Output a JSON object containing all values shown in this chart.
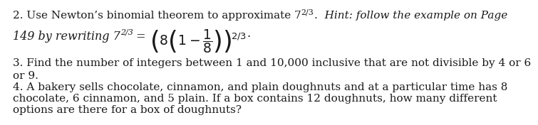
{
  "background_color": "#ffffff",
  "text_color": "#1a1a1a",
  "font_family": "DejaVu Serif",
  "fontsize": 11.0,
  "line1_normal": "2. Use Newton’s binomial theorem to approximate 7",
  "line1_super": "2/3",
  "line1_italic": ".  Hint: follow the example on Page",
  "line2_italic1": "149 by rewriting 7",
  "line2_super1": "2/3",
  "line2_italic2": " = ",
  "line2_math": "$\\left(8\\left(1-\\dfrac{1}{8}\\right)\\right)^{\\!2/3}$",
  "line2_dot": ".",
  "line3": "3. Find the number of integers between 1 and 10,000 inclusive that are not divisible by 4 or 6",
  "line4": "or 9.",
  "line5": "4. A bakery sells chocolate, cinnamon, and plain doughnuts and at a particular time has 8",
  "line6": "chocolate, 6 cinnamon, and 5 plain. If a box contains 12 doughnuts, how many different",
  "line7": "options are there for a box of doughnuts?"
}
